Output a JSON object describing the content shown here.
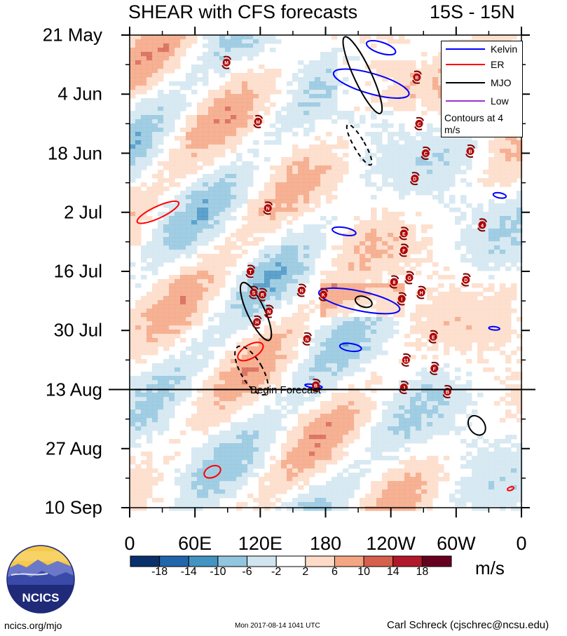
{
  "chart_data": {
    "type": "heatmap",
    "title": "SHEAR with CFS forecasts",
    "region": "15S - 15N",
    "x_tick_labels": [
      "0",
      "60E",
      "120E",
      "180",
      "120W",
      "60W",
      "0"
    ],
    "y_tick_labels": [
      "21 May",
      "4 Jun",
      "18 Jun",
      "2 Jul",
      "16 Jul",
      "30 Jul",
      "13 Aug",
      "27 Aug",
      "10 Sep"
    ],
    "xlim": [
      0,
      360
    ],
    "ylim_days_from_21_May": [
      0,
      112
    ],
    "forecast_start_day": 84,
    "forecast_label": "Begin Forecast",
    "colorbar": {
      "ticks": [
        "-18",
        "-14",
        "-10",
        "-6",
        "-2",
        "2",
        "6",
        "10",
        "14",
        "18"
      ],
      "colors": [
        "#08306b",
        "#2166ac",
        "#4393c3",
        "#92c5de",
        "#d1e5f0",
        "#ffffff",
        "#fddbc7",
        "#f4a582",
        "#d6604d",
        "#b2182b",
        "#67001f"
      ],
      "units": "m/s"
    },
    "legend": [
      {
        "label": "Kelvin",
        "color": "#0000ff"
      },
      {
        "label": "ER",
        "color": "#ff0000"
      },
      {
        "label": "MJO",
        "color": "#000000"
      },
      {
        "label": "Low",
        "color": "#9933cc"
      }
    ],
    "contour_note": "Contours at 4 m/s",
    "storm_markers": [
      {
        "letter": "M",
        "lon": 89,
        "day": 6.5
      },
      {
        "letter": "M",
        "lon": 118,
        "day": 20.5
      },
      {
        "letter": "B",
        "lon": 264,
        "day": 10
      },
      {
        "letter": "C",
        "lon": 266,
        "day": 21
      },
      {
        "letter": "C",
        "lon": 272,
        "day": 28
      },
      {
        "letter": "B",
        "lon": 313,
        "day": 27.5
      },
      {
        "letter": "D",
        "lon": 262,
        "day": 34
      },
      {
        "letter": "N",
        "lon": 127,
        "day": 41
      },
      {
        "letter": "4",
        "lon": 324,
        "day": 45
      },
      {
        "letter": "E",
        "lon": 252,
        "day": 47
      },
      {
        "letter": "F",
        "lon": 252,
        "day": 51
      },
      {
        "letter": "T",
        "lon": 111,
        "day": 56
      },
      {
        "letter": "G",
        "lon": 257,
        "day": 57.5
      },
      {
        "letter": "8",
        "lon": 243,
        "day": 58.5
      },
      {
        "letter": "D",
        "lon": 309,
        "day": 58
      },
      {
        "letter": "S",
        "lon": 114,
        "day": 61
      },
      {
        "letter": "R",
        "lon": 122,
        "day": 61.5
      },
      {
        "letter": "N",
        "lon": 158,
        "day": 60.5
      },
      {
        "letter": "K",
        "lon": 178,
        "day": 61.5
      },
      {
        "letter": "H",
        "lon": 268,
        "day": 61
      },
      {
        "letter": "I",
        "lon": 250,
        "day": 62.5
      },
      {
        "letter": "N",
        "lon": 128,
        "day": 65.5
      },
      {
        "letter": "H",
        "lon": 117,
        "day": 68
      },
      {
        "letter": "N",
        "lon": 163,
        "day": 72
      },
      {
        "letter": "E",
        "lon": 279,
        "day": 71.5
      },
      {
        "letter": "11",
        "lon": 254,
        "day": 77
      },
      {
        "letter": "F",
        "lon": 280,
        "day": 79
      },
      {
        "letter": "B",
        "lon": 171,
        "day": 83
      },
      {
        "letter": "J",
        "lon": 252,
        "day": 83.5
      },
      {
        "letter": "B",
        "lon": 292,
        "day": 84.5
      }
    ]
  },
  "footer": {
    "logo_text": "NCICS",
    "site": "ncics.org/mjo",
    "timestamp": "Mon 2017-08-14 1041 UTC",
    "author": "Carl Schreck (cjschrec@ncsu.edu)"
  }
}
